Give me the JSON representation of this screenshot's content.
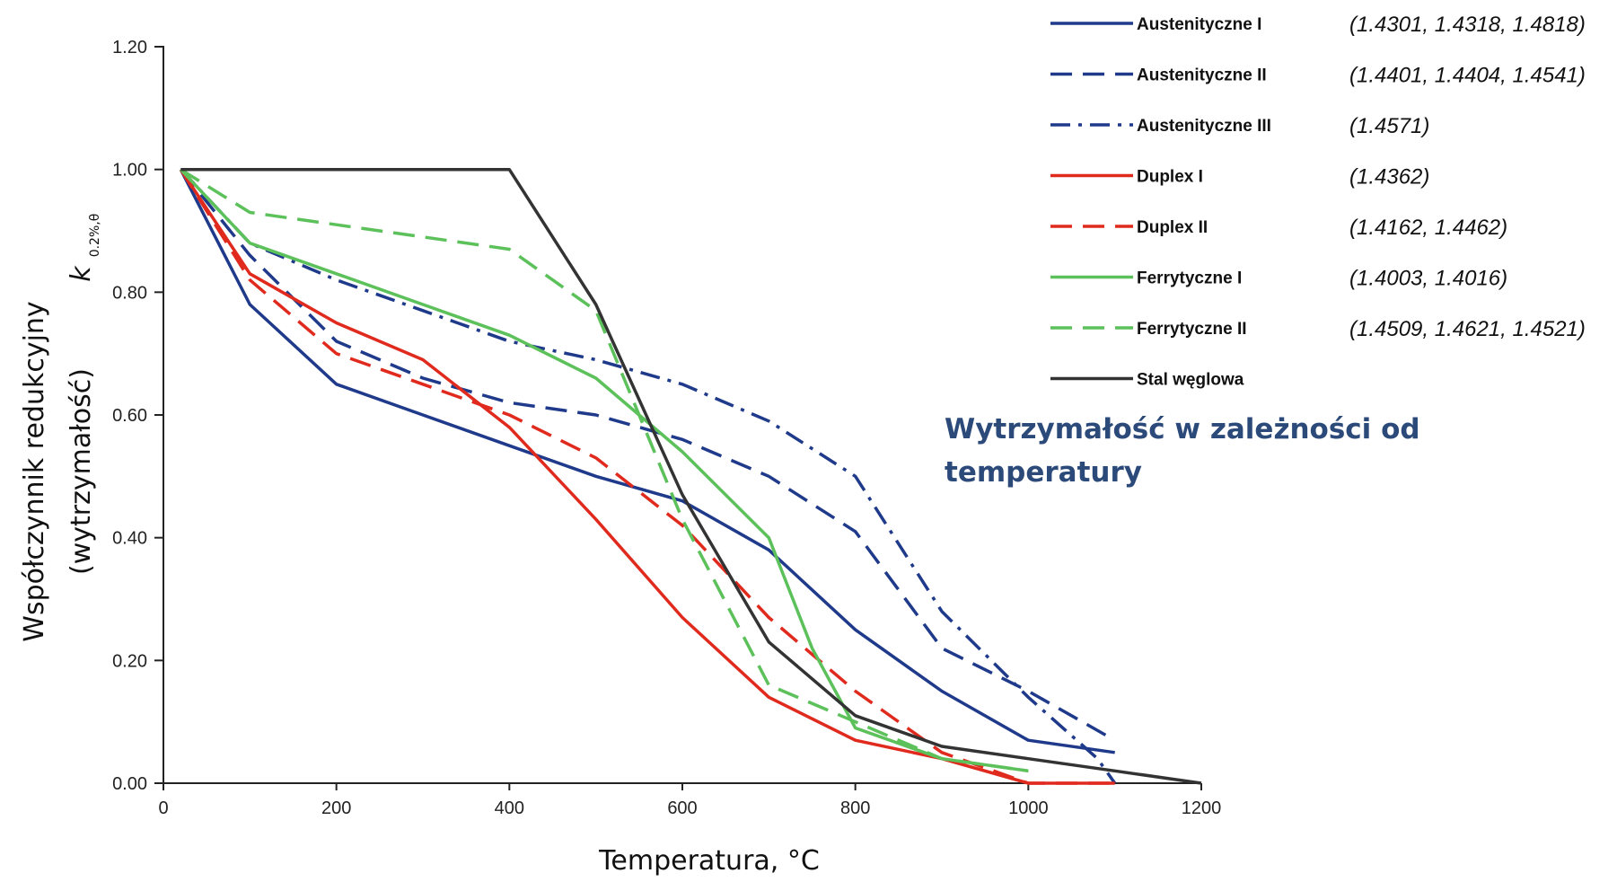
{
  "chart_data": {
    "type": "line",
    "xlabel": "Temperatura, °C",
    "ylabel_line1": "Współczynnik redukcyjny",
    "ylabel_line2": "(wytrzymałość)",
    "ysymbol": "k",
    "ysymbol_sub": "0.2%,θ",
    "xlim": [
      0,
      1200
    ],
    "ylim": [
      0,
      1.2
    ],
    "xticks": [
      0,
      200,
      400,
      600,
      800,
      1000,
      1200
    ],
    "yticks": [
      "0.00",
      "0.20",
      "0.40",
      "0.60",
      "0.80",
      "1.00",
      "1.20"
    ],
    "grid": false,
    "legend_position": "top-right",
    "annotation": [
      "Wytrzymałość w zależności od",
      "temperatury"
    ],
    "series": [
      {
        "name": "Austenityczne I",
        "grades": "(1.4301, 1.4318, 1.4818)",
        "color": "#1f3a8a",
        "dash": "solid",
        "x": [
          20,
          100,
          200,
          300,
          400,
          500,
          600,
          700,
          800,
          900,
          1000,
          1100
        ],
        "y": [
          1.0,
          0.78,
          0.65,
          0.6,
          0.55,
          0.5,
          0.46,
          0.38,
          0.25,
          0.15,
          0.07,
          0.05
        ]
      },
      {
        "name": "Austenityczne II",
        "grades": "(1.4401, 1.4404, 1.4541)",
        "color": "#1f3a8a",
        "dash": "dashed",
        "x": [
          20,
          100,
          200,
          300,
          400,
          500,
          600,
          700,
          800,
          900,
          1000,
          1100
        ],
        "y": [
          1.0,
          0.86,
          0.72,
          0.66,
          0.62,
          0.6,
          0.56,
          0.5,
          0.41,
          0.22,
          0.15,
          0.07
        ]
      },
      {
        "name": "Austenityczne III",
        "grades": "(1.4571)",
        "color": "#1f3a8a",
        "dash": "dashdot",
        "x": [
          20,
          100,
          200,
          300,
          400,
          500,
          600,
          700,
          800,
          900,
          1000,
          1080,
          1100
        ],
        "y": [
          1.0,
          0.88,
          0.82,
          0.77,
          0.72,
          0.69,
          0.65,
          0.59,
          0.5,
          0.28,
          0.14,
          0.04,
          0.0
        ]
      },
      {
        "name": "Duplex I",
        "grades": "(1.4362)",
        "color": "#e02a1e",
        "dash": "solid",
        "x": [
          20,
          100,
          200,
          300,
          400,
          500,
          600,
          700,
          800,
          900,
          1000,
          1100
        ],
        "y": [
          1.0,
          0.83,
          0.75,
          0.69,
          0.58,
          0.43,
          0.27,
          0.14,
          0.07,
          0.04,
          0.0,
          0.0
        ]
      },
      {
        "name": "Duplex II",
        "grades": "(1.4162, 1.4462)",
        "color": "#e02a1e",
        "dash": "dashed",
        "x": [
          20,
          100,
          200,
          300,
          400,
          500,
          600,
          700,
          800,
          900,
          1000,
          1100
        ],
        "y": [
          1.0,
          0.82,
          0.7,
          0.65,
          0.6,
          0.53,
          0.42,
          0.27,
          0.15,
          0.05,
          0.0,
          0.0
        ]
      },
      {
        "name": "Ferrytyczne I",
        "grades": "(1.4003, 1.4016)",
        "color": "#5cc15a",
        "dash": "solid",
        "x": [
          20,
          100,
          200,
          300,
          400,
          500,
          600,
          700,
          750,
          800,
          900,
          1000
        ],
        "y": [
          1.0,
          0.88,
          0.83,
          0.78,
          0.73,
          0.66,
          0.54,
          0.4,
          0.22,
          0.09,
          0.04,
          0.02
        ]
      },
      {
        "name": "Ferrytyczne II",
        "grades": "(1.4509, 1.4621, 1.4521)",
        "color": "#5cc15a",
        "dash": "dashed",
        "x": [
          20,
          100,
          200,
          300,
          400,
          500,
          600,
          700,
          800,
          900,
          1000
        ],
        "y": [
          1.0,
          0.93,
          0.91,
          0.89,
          0.87,
          0.77,
          0.43,
          0.16,
          0.1,
          0.04,
          0.02
        ]
      },
      {
        "name": "Stal węglowa",
        "grades": "",
        "color": "#333333",
        "dash": "solid",
        "x": [
          20,
          100,
          200,
          300,
          400,
          500,
          600,
          700,
          800,
          900,
          1000,
          1100,
          1200
        ],
        "y": [
          1.0,
          1.0,
          1.0,
          1.0,
          1.0,
          0.78,
          0.47,
          0.23,
          0.11,
          0.06,
          0.04,
          0.02,
          0.0
        ]
      }
    ]
  }
}
